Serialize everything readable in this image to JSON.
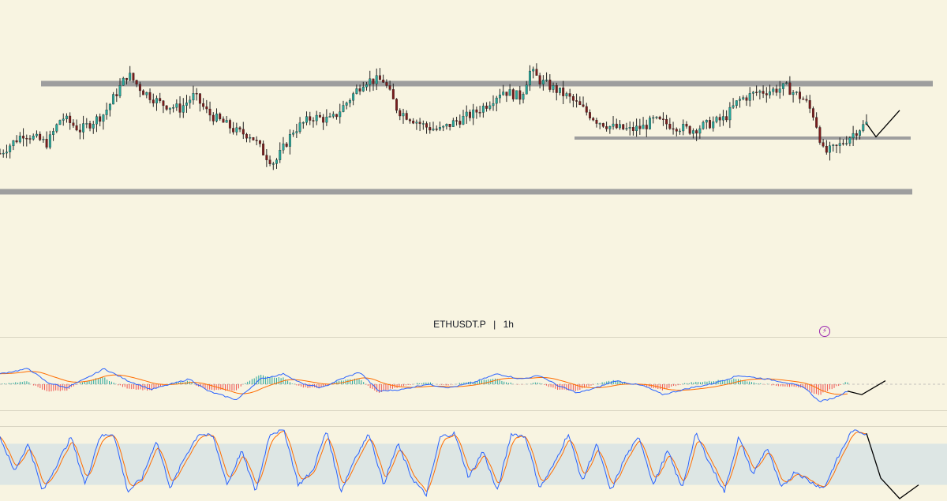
{
  "symbol": {
    "ticker": "ETHUSDT.P",
    "separator": "|",
    "interval": "1h"
  },
  "alert_icon": "lightning-bolt-icon",
  "colors": {
    "background": "#f8f4e1",
    "candle_up": "#26a69a",
    "candle_down": "#7a1c1c",
    "wick": "#222222",
    "level_line": "#9e9e9e",
    "drawing": "#000000",
    "macd_line": "#2962ff",
    "signal_line": "#ff6d00",
    "hist_up": "#26a69a",
    "hist_down": "#ef5350",
    "stoch_k": "#2962ff",
    "stoch_d": "#ff6d00",
    "stoch_band": "#dde6e4"
  },
  "chart_data": [
    {
      "type": "candlestick",
      "panel": "price",
      "title": "",
      "series": [
        {
          "name": "",
          "description_points": [
            [
              0,
              0.36
            ],
            [
              5,
              0.48
            ],
            [
              10,
              0.42
            ],
            [
              13,
              0.58
            ],
            [
              17,
              0.5
            ],
            [
              22,
              0.6
            ],
            [
              27,
              0.84
            ],
            [
              30,
              0.74
            ],
            [
              34,
              0.66
            ],
            [
              38,
              0.63
            ],
            [
              41,
              0.71
            ],
            [
              44,
              0.6
            ],
            [
              48,
              0.53
            ],
            [
              50,
              0.49
            ],
            [
              53,
              0.47
            ],
            [
              56,
              0.35
            ],
            [
              58,
              0.3
            ],
            [
              62,
              0.5
            ],
            [
              66,
              0.58
            ],
            [
              70,
              0.56
            ],
            [
              73,
              0.66
            ],
            [
              77,
              0.8
            ],
            [
              81,
              0.8
            ],
            [
              84,
              0.62
            ],
            [
              87,
              0.57
            ],
            [
              90,
              0.52
            ],
            [
              93,
              0.5
            ],
            [
              96,
              0.55
            ],
            [
              100,
              0.6
            ],
            [
              103,
              0.66
            ],
            [
              106,
              0.74
            ],
            [
              110,
              0.7
            ],
            [
              112,
              0.86
            ],
            [
              114,
              0.8
            ],
            [
              117,
              0.75
            ],
            [
              120,
              0.7
            ],
            [
              123,
              0.63
            ],
            [
              126,
              0.56
            ],
            [
              129,
              0.52
            ],
            [
              133,
              0.5
            ],
            [
              136,
              0.52
            ],
            [
              138,
              0.56
            ],
            [
              142,
              0.53
            ],
            [
              146,
              0.5
            ],
            [
              150,
              0.54
            ],
            [
              153,
              0.57
            ],
            [
              156,
              0.68
            ],
            [
              160,
              0.73
            ],
            [
              163,
              0.74
            ],
            [
              166,
              0.76
            ],
            [
              168,
              0.72
            ],
            [
              170,
              0.68
            ],
            [
              172,
              0.58
            ],
            [
              174,
              0.36
            ],
            [
              177,
              0.4
            ],
            [
              181,
              0.5
            ],
            [
              183,
              0.54
            ]
          ]
        }
      ],
      "levels": [
        {
          "name": "resistance",
          "y_rel": 0.83
        },
        {
          "name": "mid-level",
          "y_rel": 0.55
        },
        {
          "name": "support",
          "y_rel": 0.3
        }
      ],
      "projection": [
        [
          183,
          0.54
        ],
        [
          185,
          0.46
        ],
        [
          190,
          0.62
        ]
      ]
    },
    {
      "type": "macd",
      "panel": "macd",
      "series": [
        {
          "name": "",
          "role": "macd",
          "color": "#2962ff"
        },
        {
          "name": "",
          "role": "signal",
          "color": "#ff6d00"
        },
        {
          "name": "",
          "role": "histogram"
        }
      ],
      "description_points": [
        [
          0,
          0.6
        ],
        [
          6,
          0.9
        ],
        [
          10,
          0.1
        ],
        [
          14,
          -0.2
        ],
        [
          18,
          0.3
        ],
        [
          22,
          0.9
        ],
        [
          27,
          0.2
        ],
        [
          32,
          -0.3
        ],
        [
          36,
          0.0
        ],
        [
          40,
          0.3
        ],
        [
          44,
          -0.4
        ],
        [
          50,
          -0.9
        ],
        [
          55,
          0.3
        ],
        [
          60,
          0.6
        ],
        [
          64,
          0.0
        ],
        [
          68,
          -0.2
        ],
        [
          72,
          0.3
        ],
        [
          76,
          0.7
        ],
        [
          80,
          -0.4
        ],
        [
          85,
          -0.3
        ],
        [
          90,
          0.0
        ],
        [
          95,
          -0.2
        ],
        [
          100,
          0.1
        ],
        [
          105,
          0.6
        ],
        [
          110,
          0.3
        ],
        [
          114,
          0.5
        ],
        [
          118,
          -0.1
        ],
        [
          122,
          -0.5
        ],
        [
          126,
          -0.2
        ],
        [
          130,
          0.2
        ],
        [
          136,
          -0.1
        ],
        [
          140,
          -0.6
        ],
        [
          146,
          -0.2
        ],
        [
          150,
          0.0
        ],
        [
          156,
          0.5
        ],
        [
          162,
          0.3
        ],
        [
          166,
          0.1
        ],
        [
          170,
          -0.2
        ],
        [
          173,
          -1.0
        ],
        [
          176,
          -0.8
        ],
        [
          179,
          -0.4
        ]
      ],
      "projection": [
        [
          179,
          -0.4
        ],
        [
          182,
          -0.6
        ],
        [
          187,
          0.2
        ]
      ]
    },
    {
      "type": "stochastic_rsi",
      "panel": "stoch",
      "series": [
        {
          "name": "",
          "role": "k",
          "color": "#2962ff"
        },
        {
          "name": "",
          "role": "d",
          "color": "#ff6d00"
        }
      ],
      "band": [
        20,
        80
      ],
      "ylim": [
        0,
        100
      ],
      "description_points": [
        [
          0,
          90
        ],
        [
          3,
          40
        ],
        [
          6,
          80
        ],
        [
          9,
          10
        ],
        [
          12,
          50
        ],
        [
          15,
          90
        ],
        [
          18,
          20
        ],
        [
          21,
          90
        ],
        [
          24,
          95
        ],
        [
          27,
          10
        ],
        [
          30,
          30
        ],
        [
          33,
          85
        ],
        [
          36,
          15
        ],
        [
          39,
          60
        ],
        [
          42,
          95
        ],
        [
          45,
          90
        ],
        [
          48,
          20
        ],
        [
          51,
          70
        ],
        [
          54,
          10
        ],
        [
          57,
          95
        ],
        [
          60,
          100
        ],
        [
          63,
          20
        ],
        [
          66,
          40
        ],
        [
          69,
          100
        ],
        [
          72,
          10
        ],
        [
          75,
          60
        ],
        [
          78,
          95
        ],
        [
          81,
          20
        ],
        [
          84,
          80
        ],
        [
          87,
          30
        ],
        [
          90,
          5
        ],
        [
          93,
          90
        ],
        [
          96,
          95
        ],
        [
          99,
          30
        ],
        [
          102,
          70
        ],
        [
          105,
          10
        ],
        [
          108,
          95
        ],
        [
          111,
          90
        ],
        [
          114,
          15
        ],
        [
          117,
          50
        ],
        [
          120,
          95
        ],
        [
          123,
          25
        ],
        [
          126,
          80
        ],
        [
          129,
          10
        ],
        [
          132,
          60
        ],
        [
          135,
          90
        ],
        [
          138,
          20
        ],
        [
          141,
          70
        ],
        [
          144,
          15
        ],
        [
          147,
          95
        ],
        [
          150,
          50
        ],
        [
          153,
          10
        ],
        [
          156,
          90
        ],
        [
          159,
          35
        ],
        [
          162,
          75
        ],
        [
          165,
          15
        ],
        [
          168,
          40
        ],
        [
          171,
          25
        ],
        [
          174,
          15
        ],
        [
          177,
          60
        ],
        [
          180,
          100
        ],
        [
          183,
          95
        ]
      ],
      "projection": [
        [
          183,
          95
        ],
        [
          186,
          30
        ],
        [
          190,
          0
        ],
        [
          194,
          20
        ]
      ]
    }
  ]
}
